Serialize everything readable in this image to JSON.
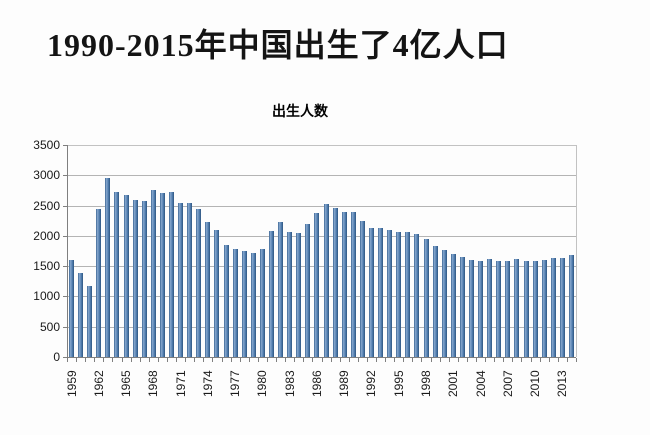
{
  "page": {
    "background": "#fdfdfd"
  },
  "header": {
    "title": "1990-2015年中国出生了4亿人口"
  },
  "chart": {
    "title": "出生人数",
    "colors": {
      "bar": "#4f81bd",
      "bar_edge_dark": "#2d5580",
      "bar_highlight": "#89a9ce",
      "gridline": "#b4b4b4",
      "axis": "#7f7f7f",
      "text": "#1a1a1a"
    }
  },
  "chart_data": {
    "type": "bar",
    "title": "出生人数",
    "categories": [
      1959,
      1960,
      1961,
      1962,
      1963,
      1964,
      1965,
      1966,
      1967,
      1968,
      1969,
      1970,
      1971,
      1972,
      1973,
      1974,
      1975,
      1976,
      1977,
      1978,
      1979,
      1980,
      1981,
      1982,
      1983,
      1984,
      1985,
      1986,
      1987,
      1988,
      1989,
      1990,
      1991,
      1992,
      1993,
      1994,
      1995,
      1996,
      1997,
      1998,
      1999,
      2000,
      2001,
      2002,
      2003,
      2004,
      2005,
      2006,
      2007,
      2008,
      2009,
      2010,
      2011,
      2012,
      2013,
      2014
    ],
    "values": [
      1600,
      1390,
      1180,
      2450,
      2950,
      2730,
      2680,
      2600,
      2570,
      2750,
      2700,
      2730,
      2550,
      2550,
      2450,
      2230,
      2100,
      1850,
      1790,
      1750,
      1720,
      1790,
      2080,
      2230,
      2070,
      2050,
      2200,
      2380,
      2530,
      2460,
      2400,
      2390,
      2250,
      2130,
      2130,
      2100,
      2060,
      2060,
      2030,
      1940,
      1830,
      1770,
      1700,
      1650,
      1600,
      1590,
      1610,
      1580,
      1590,
      1610,
      1590,
      1590,
      1600,
      1630,
      1640,
      1690
    ],
    "x_tick_labels": [
      "1959",
      "1962",
      "1965",
      "1968",
      "1971",
      "1974",
      "1977",
      "1980",
      "1983",
      "1986",
      "1989",
      "1992",
      "1995",
      "1998",
      "2001",
      "2004",
      "2007",
      "2010",
      "2013"
    ],
    "x_label_step": 3,
    "y_tick_labels": [
      "0",
      "500",
      "1000",
      "1500",
      "2000",
      "2500",
      "3000",
      "3500"
    ],
    "ylim": [
      0,
      3500
    ],
    "ytick_step": 500,
    "xlabel": "",
    "ylabel": "",
    "grid": true,
    "legend": false
  }
}
